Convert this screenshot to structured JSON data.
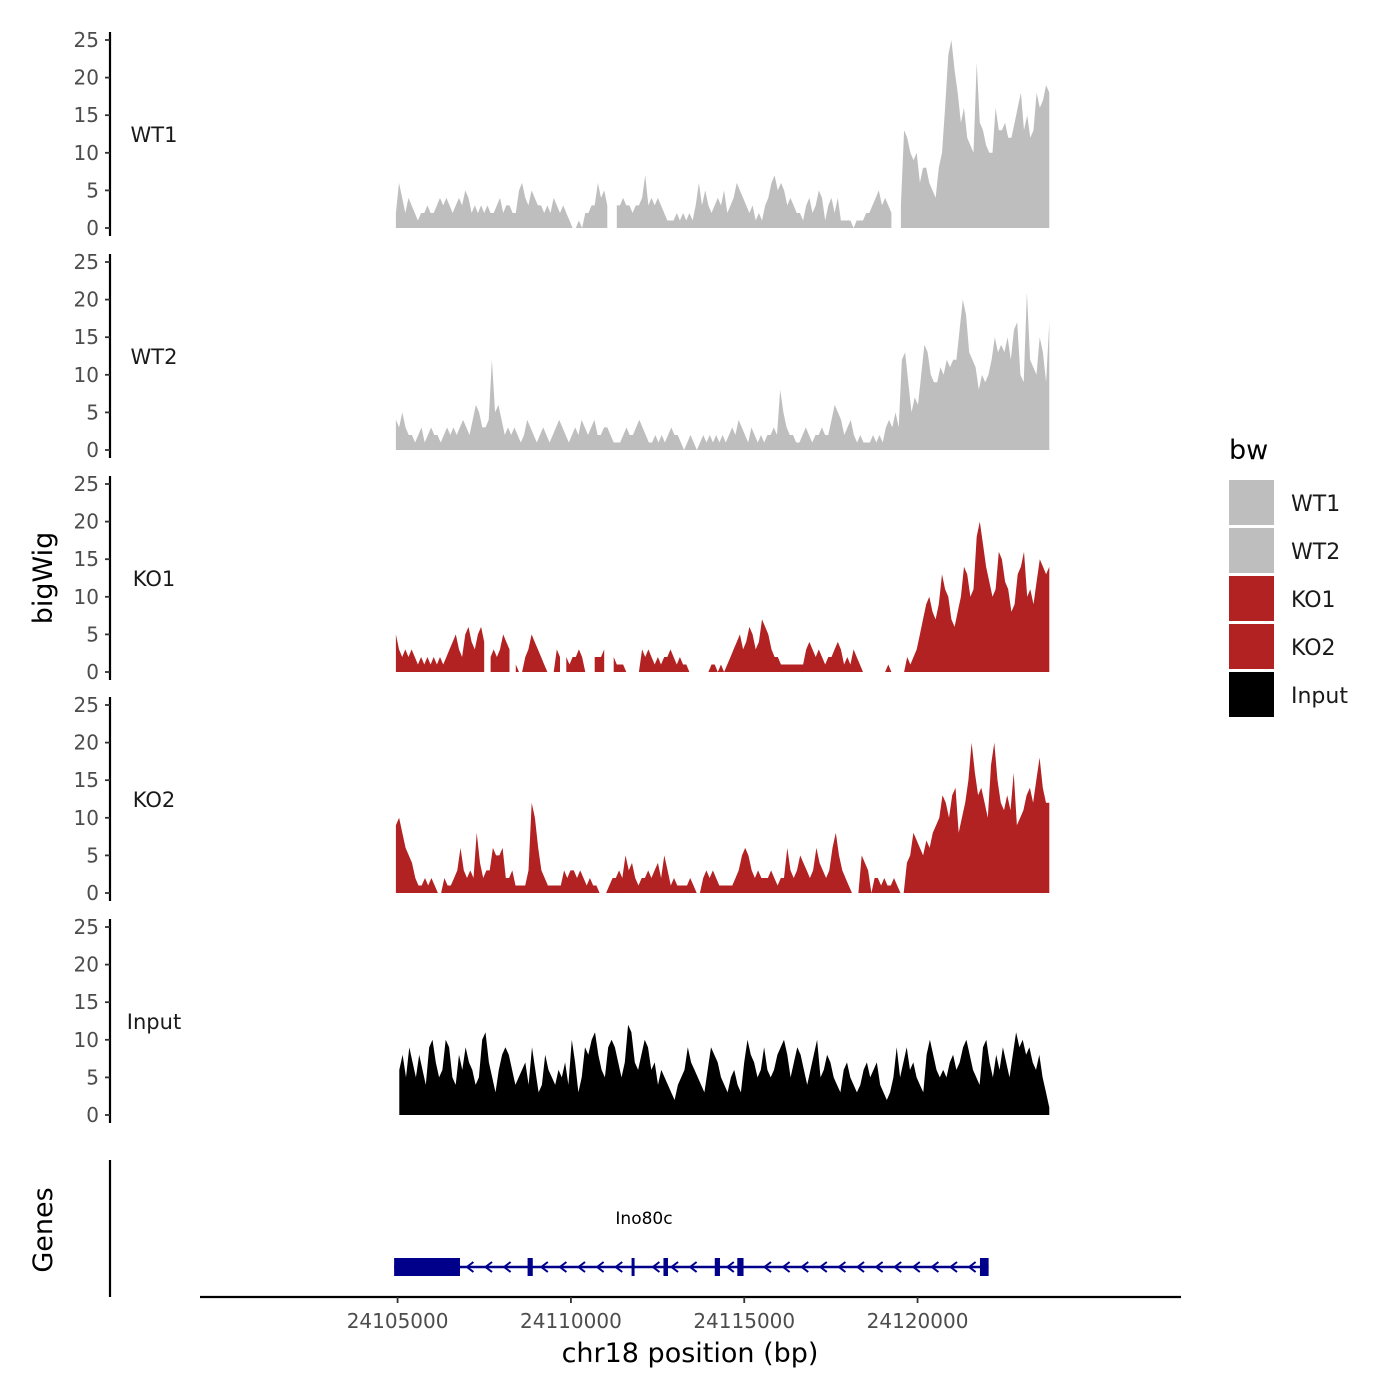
{
  "chart_data": [
    {
      "type": "area",
      "ylabel": "bigWig",
      "chromosome": "chr18",
      "ylim": [
        0,
        25
      ],
      "yticks": [
        0,
        5,
        10,
        15,
        20,
        25
      ],
      "xlim": [
        24099300,
        24127600
      ],
      "series": [
        {
          "name": "WT1",
          "color": "#bebebe",
          "start": 24104950,
          "end": 24123800,
          "gaps": [
            [
              24111100,
              24111250
            ],
            [
              24119300,
              24119450
            ]
          ],
          "values": [
            2,
            6,
            4,
            2,
            4,
            3,
            2,
            1,
            2,
            2,
            3,
            2,
            2,
            3,
            4,
            3,
            4,
            3,
            2,
            3,
            4,
            3,
            5,
            4,
            2,
            3,
            2,
            3,
            2,
            3,
            2,
            2,
            3,
            4,
            2,
            3,
            3,
            2,
            2,
            5,
            6,
            4,
            3,
            5,
            4,
            3,
            3,
            2,
            3,
            2,
            4,
            3,
            2,
            3,
            2,
            1,
            0,
            0,
            1,
            0,
            2,
            2,
            3,
            3,
            6,
            4,
            5,
            3,
            2,
            3,
            3,
            3,
            4,
            3,
            3,
            2,
            3,
            3,
            4,
            7,
            3,
            4,
            3,
            4,
            3,
            2,
            1,
            1,
            1,
            2,
            1,
            2,
            1,
            2,
            1,
            3,
            6,
            3,
            5,
            3,
            2,
            3,
            4,
            3,
            5,
            2,
            3,
            4,
            6,
            5,
            4,
            3,
            2,
            3,
            1,
            2,
            1,
            3,
            4,
            6,
            7,
            5,
            6,
            5,
            3,
            4,
            3,
            2,
            2,
            1,
            3,
            4,
            2,
            3,
            5,
            4,
            1,
            3,
            4,
            2,
            4,
            1,
            1,
            1,
            1,
            0,
            1,
            1,
            1,
            2,
            2,
            3,
            4,
            5,
            3,
            4,
            3,
            2,
            3,
            4,
            3,
            13,
            12,
            10,
            9,
            10,
            6,
            8,
            8,
            6,
            5,
            4,
            8,
            10,
            16,
            23,
            25,
            21,
            18,
            14,
            16,
            12,
            11,
            10,
            22,
            14,
            13,
            11,
            10,
            10,
            16,
            13,
            13,
            14,
            12,
            12,
            14,
            16,
            18,
            13,
            15,
            12,
            13,
            18,
            16,
            17,
            19,
            18
          ]
        },
        {
          "name": "WT2",
          "color": "#bebebe",
          "start": 24104950,
          "end": 24123800,
          "values": [
            4,
            3,
            5,
            3,
            2,
            2,
            1,
            2,
            3,
            1,
            2,
            3,
            2,
            2,
            1,
            2,
            3,
            2,
            3,
            2,
            3,
            4,
            3,
            2,
            4,
            6,
            5,
            3,
            3,
            4,
            12,
            5,
            6,
            4,
            2,
            3,
            2,
            3,
            2,
            1,
            2,
            4,
            3,
            2,
            1,
            2,
            3,
            2,
            1,
            2,
            3,
            4,
            3,
            2,
            1,
            2,
            3,
            2,
            4,
            3,
            2,
            3,
            4,
            2,
            2,
            3,
            3,
            2,
            1,
            1,
            1,
            2,
            3,
            2,
            2,
            3,
            4,
            3,
            2,
            1,
            1,
            2,
            1,
            2,
            1,
            2,
            3,
            2,
            2,
            1,
            0,
            1,
            2,
            1,
            0,
            1,
            2,
            1,
            2,
            1,
            2,
            1,
            2,
            1,
            2,
            3,
            2,
            4,
            3,
            2,
            1,
            3,
            2,
            1,
            2,
            1,
            2,
            2,
            3,
            2,
            8,
            5,
            3,
            2,
            2,
            1,
            1,
            2,
            3,
            2,
            1,
            2,
            2,
            3,
            2,
            2,
            4,
            6,
            5,
            4,
            2,
            3,
            4,
            2,
            1,
            2,
            1,
            1,
            1,
            2,
            1,
            2,
            1,
            3,
            4,
            3,
            5,
            3,
            12,
            13,
            9,
            5,
            7,
            6,
            10,
            14,
            13,
            10,
            9,
            9,
            11,
            10,
            12,
            11,
            12,
            12,
            16,
            20,
            18,
            13,
            12,
            11,
            8,
            10,
            9,
            10,
            12,
            15,
            13,
            14,
            13,
            15,
            12,
            16,
            17,
            10,
            9,
            21,
            12,
            11,
            10,
            15,
            13,
            9,
            17
          ]
        },
        {
          "name": "KO1",
          "color": "#b22222",
          "start": 24104950,
          "end": 24123800,
          "gaps": [
            [
              24107500,
              24107600
            ],
            [
              24108300,
              24108400
            ],
            [
              24109700,
              24109800
            ],
            [
              24110500,
              24110600
            ],
            [
              24111000,
              24111200
            ],
            [
              24119300,
              24119450
            ]
          ],
          "values": [
            5,
            3,
            2,
            3,
            2,
            3,
            2,
            1,
            2,
            1,
            2,
            1,
            2,
            1,
            2,
            1,
            2,
            3,
            4,
            5,
            3,
            2,
            5,
            6,
            4,
            3,
            5,
            6,
            4,
            3,
            2,
            3,
            2,
            3,
            5,
            4,
            3,
            2,
            1,
            0,
            0,
            2,
            3,
            5,
            4,
            3,
            2,
            1,
            0,
            0,
            0,
            3,
            2,
            3,
            2,
            1,
            2,
            2,
            3,
            2,
            0,
            0,
            0,
            2,
            2,
            2,
            3,
            2,
            1,
            2,
            1,
            1,
            1,
            0,
            0,
            0,
            0,
            0,
            3,
            2,
            3,
            2,
            1,
            2,
            1,
            2,
            2,
            3,
            2,
            1,
            2,
            1,
            1,
            0,
            0,
            0,
            0,
            0,
            0,
            0,
            1,
            1,
            0,
            1,
            0,
            1,
            2,
            3,
            4,
            5,
            3,
            4,
            6,
            5,
            3,
            4,
            7,
            6,
            5,
            3,
            2,
            2,
            1,
            1,
            1,
            1,
            1,
            1,
            1,
            1,
            3,
            4,
            3,
            2,
            3,
            2,
            1,
            2,
            2,
            3,
            4,
            3,
            1,
            2,
            1,
            3,
            2,
            1,
            0,
            0,
            0,
            0,
            0,
            0,
            0,
            0,
            1,
            0,
            0,
            0,
            0,
            0,
            2,
            1,
            2,
            3,
            5,
            7,
            9,
            10,
            8,
            7,
            9,
            13,
            11,
            10,
            7,
            6,
            8,
            10,
            14,
            13,
            10,
            11,
            18,
            20,
            17,
            14,
            12,
            10,
            11,
            16,
            15,
            12,
            11,
            8,
            9,
            13,
            14,
            16,
            10,
            11,
            9,
            12,
            15,
            14,
            13,
            14
          ]
        },
        {
          "name": "KO2",
          "color": "#b22222",
          "start": 24104950,
          "end": 24123800,
          "values": [
            9,
            10,
            8,
            6,
            5,
            4,
            2,
            1,
            1,
            2,
            1,
            2,
            1,
            0,
            0,
            2,
            1,
            1,
            2,
            3,
            6,
            3,
            2,
            3,
            2,
            8,
            4,
            2,
            3,
            3,
            6,
            5,
            5,
            6,
            2,
            2,
            3,
            1,
            1,
            1,
            1,
            3,
            12,
            10,
            6,
            3,
            2,
            1,
            1,
            1,
            1,
            1,
            3,
            2,
            3,
            3,
            2,
            3,
            2,
            1,
            2,
            1,
            1,
            0,
            0,
            0,
            1,
            2,
            2,
            3,
            2,
            5,
            3,
            4,
            2,
            1,
            2,
            2,
            3,
            2,
            3,
            4,
            2,
            5,
            3,
            1,
            2,
            1,
            1,
            1,
            1,
            2,
            1,
            0,
            0,
            2,
            3,
            2,
            3,
            2,
            1,
            1,
            1,
            1,
            1,
            2,
            3,
            5,
            6,
            5,
            3,
            2,
            3,
            2,
            2,
            2,
            3,
            2,
            1,
            2,
            2,
            6,
            3,
            2,
            3,
            5,
            4,
            3,
            2,
            3,
            6,
            4,
            3,
            2,
            3,
            6,
            8,
            5,
            3,
            2,
            1,
            0,
            0,
            0,
            5,
            4,
            3,
            0,
            2,
            2,
            1,
            2,
            1,
            1,
            2,
            1,
            0,
            0,
            4,
            5,
            8,
            7,
            6,
            5,
            7,
            6,
            8,
            9,
            10,
            13,
            12,
            10,
            13,
            14,
            8,
            10,
            12,
            15,
            20,
            16,
            13,
            14,
            12,
            10,
            17,
            20,
            15,
            12,
            11,
            13,
            11,
            16,
            9,
            10,
            11,
            13,
            14,
            12,
            15,
            18,
            14,
            12,
            12
          ]
        },
        {
          "name": "Input",
          "color": "#000000",
          "start": 24105050,
          "end": 24123800,
          "values": [
            6,
            8,
            5,
            9,
            7,
            5,
            8,
            6,
            4,
            9,
            10,
            7,
            5,
            6,
            10,
            9,
            5,
            4,
            8,
            6,
            9,
            7,
            6,
            4,
            5,
            10,
            11,
            7,
            5,
            3,
            6,
            8,
            9,
            8,
            6,
            4,
            5,
            6,
            7,
            4,
            9,
            6,
            3,
            4,
            8,
            6,
            5,
            4,
            6,
            5,
            7,
            4,
            10,
            7,
            3,
            5,
            9,
            8,
            10,
            11,
            8,
            6,
            5,
            9,
            10,
            9,
            7,
            5,
            7,
            12,
            11,
            7,
            6,
            8,
            10,
            9,
            6,
            7,
            4,
            6,
            5,
            4,
            3,
            2,
            4,
            5,
            6,
            9,
            7,
            6,
            5,
            4,
            3,
            6,
            9,
            8,
            7,
            5,
            4,
            3,
            5,
            6,
            4,
            3,
            7,
            10,
            8,
            7,
            5,
            6,
            9,
            6,
            5,
            6,
            8,
            9,
            10,
            8,
            5,
            7,
            9,
            8,
            6,
            4,
            6,
            8,
            10,
            5,
            6,
            8,
            7,
            5,
            4,
            3,
            6,
            7,
            5,
            4,
            3,
            4,
            6,
            7,
            5,
            6,
            7,
            4,
            3,
            2,
            3,
            5,
            9,
            5,
            7,
            9,
            6,
            7,
            5,
            4,
            3,
            8,
            10,
            8,
            6,
            5,
            6,
            5,
            7,
            8,
            6,
            7,
            9,
            10,
            8,
            6,
            5,
            4,
            9,
            10,
            7,
            5,
            8,
            6,
            9,
            7,
            5,
            8,
            11,
            9,
            10,
            8,
            9,
            7,
            6,
            8,
            5,
            3,
            1
          ]
        }
      ]
    },
    {
      "type": "gene-track",
      "ylabel": "Genes",
      "xlabel": "chr18 position (bp)",
      "xticks": [
        24105000,
        24110000,
        24115000,
        24120000
      ],
      "gene": {
        "name": "Ino80c",
        "start": 24104900,
        "end": 24122050,
        "strand": "-",
        "color": "#00008b",
        "exons": [
          [
            24104900,
            24106800
          ],
          [
            24108750,
            24108900
          ],
          [
            24111750,
            24111800
          ],
          [
            24112670,
            24112800
          ],
          [
            24114150,
            24114300
          ],
          [
            24114800,
            24114980
          ],
          [
            24121800,
            24122050
          ]
        ]
      }
    }
  ],
  "legend": {
    "title": "bw",
    "items": [
      {
        "label": "WT1",
        "color": "#bebebe"
      },
      {
        "label": "WT2",
        "color": "#bebebe"
      },
      {
        "label": "KO1",
        "color": "#b22222"
      },
      {
        "label": "KO2",
        "color": "#b22222"
      },
      {
        "label": "Input",
        "color": "#000000"
      }
    ]
  }
}
